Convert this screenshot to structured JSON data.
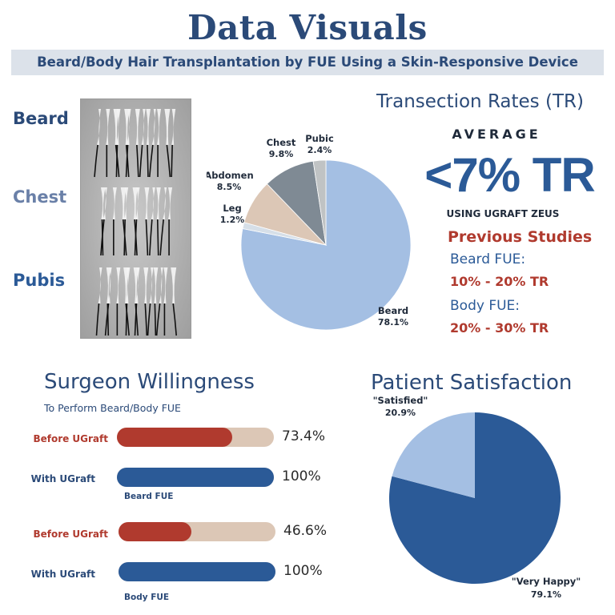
{
  "header": {
    "title": "Data Visuals",
    "subtitle": "Beard/Body Hair Transplantation by FUE Using a Skin-Responsive Device"
  },
  "samples": {
    "labels": [
      "Beard",
      "Chest",
      "Pubis"
    ],
    "colors": [
      "#2b4a78",
      "#6a80a8",
      "#2b5a97"
    ]
  },
  "transection": {
    "title": "Transection Rates (TR)",
    "average_label": "AVERAGE",
    "average_value": "<7% TR",
    "average_note": "USING UGRAFT ZEUS",
    "previous_title": "Previous Studies",
    "previous": [
      {
        "label": "Beard FUE:",
        "value": "10% - 20% TR"
      },
      {
        "label": "Body FUE:",
        "value": "20% - 30% TR"
      }
    ]
  },
  "willingness": {
    "title": "Surgeon Willingness",
    "subtitle": "To Perform Beard/Body FUE",
    "before_label": "Before UGraft",
    "with_label": "With UGraft",
    "groups": [
      {
        "name": "Beard FUE",
        "before": 73.4,
        "before_text": "73.4%",
        "with": 100,
        "with_text": "100%"
      },
      {
        "name": "Body FUE",
        "before": 46.6,
        "before_text": "46.6%",
        "with": 100,
        "with_text": "100%"
      }
    ]
  },
  "satisfaction": {
    "title": "Patient Satisfaction"
  },
  "colors": {
    "navy": "#2b4a78",
    "blue": "#2b5a97",
    "red": "#b03a2e",
    "track": "#dcc7b6",
    "light_blue": "#a4bfe3"
  },
  "chart_data": [
    {
      "type": "pie",
      "title": "",
      "categories": [
        "Beard",
        "Leg",
        "Abdomen",
        "Chest",
        "Pubic"
      ],
      "values": [
        78.1,
        1.2,
        8.5,
        9.8,
        2.4
      ],
      "value_labels": [
        "78.1%",
        "1.2%",
        "8.5%",
        "9.8%",
        "2.4%"
      ],
      "colors": [
        "#a4bfe3",
        "#d6dfe8",
        "#dcc7b6",
        "#7f8a94",
        "#c0c3c4"
      ]
    },
    {
      "type": "bar",
      "title": "Surgeon Willingness",
      "categories": [
        "Beard FUE",
        "Body FUE"
      ],
      "series": [
        {
          "name": "Before UGraft",
          "values": [
            73.4,
            46.6
          ]
        },
        {
          "name": "With UGraft",
          "values": [
            100,
            100
          ]
        }
      ],
      "ylim": [
        0,
        100
      ]
    },
    {
      "type": "pie",
      "title": "Patient Satisfaction",
      "categories": [
        "\"Very Happy\"",
        "\"Satisfied\""
      ],
      "values": [
        79.1,
        20.9
      ],
      "value_labels": [
        "79.1%",
        "20.9%"
      ],
      "colors": [
        "#2b5a97",
        "#a4bfe3"
      ]
    }
  ]
}
